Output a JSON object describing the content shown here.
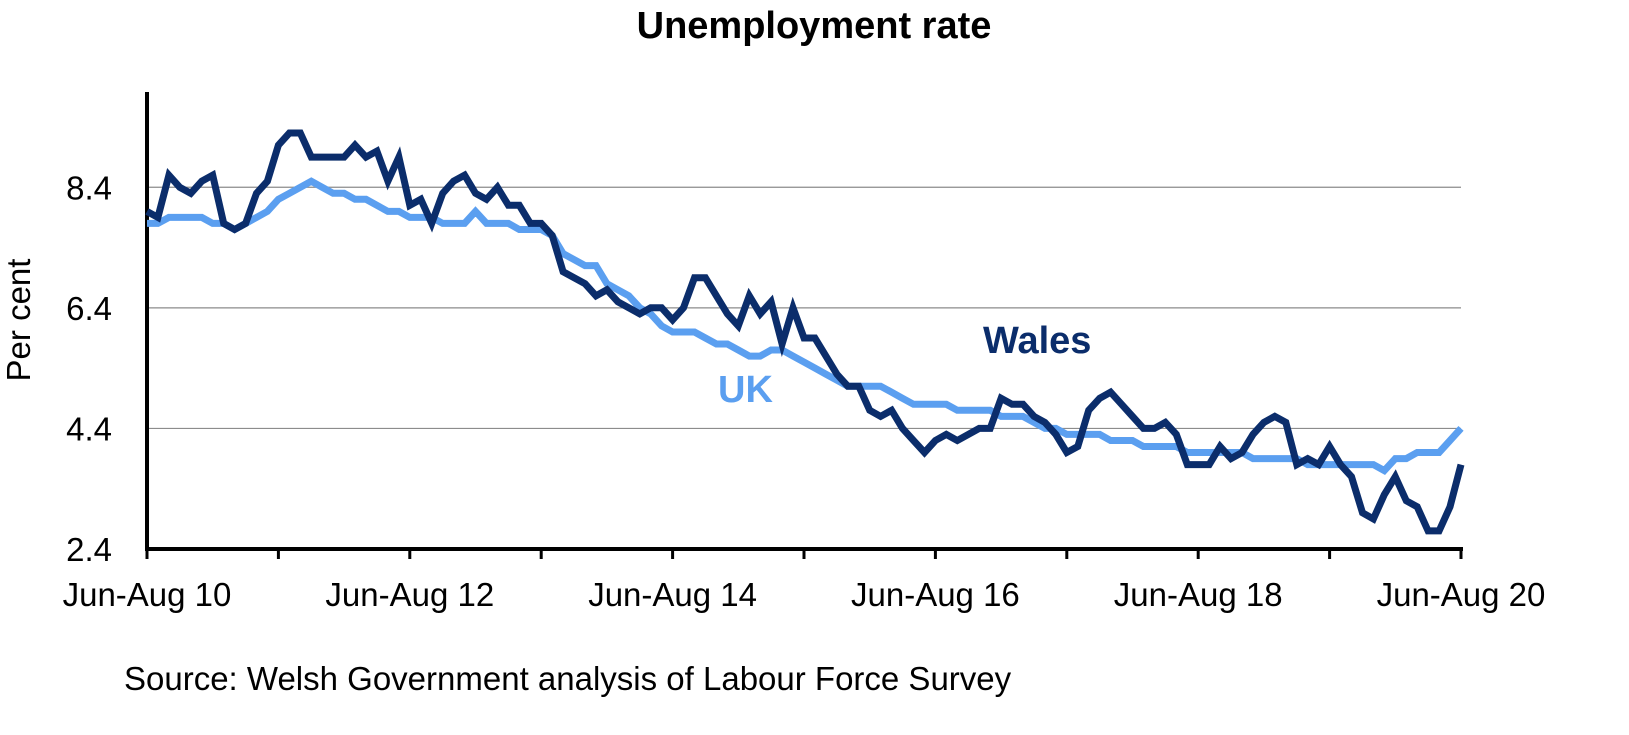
{
  "chart_data": {
    "type": "line",
    "title": "Unemployment rate",
    "xlabel": "",
    "ylabel": "Per cent",
    "source": "Source: Welsh Government analysis of Labour Force Survey",
    "ylim": [
      2.4,
      9.98
    ],
    "yticks": [
      "2.4",
      "4.4",
      "6.4",
      "8.4"
    ],
    "ytick_values": [
      2.4,
      4.4,
      6.4,
      8.4
    ],
    "xtick_labels": [
      "Jun-Aug 10",
      "Jun-Aug 12",
      "Jun-Aug 14",
      "Jun-Aug 16",
      "Jun-Aug 18",
      "Jun-Aug 20"
    ],
    "xtick_label_index": [
      0,
      24,
      48,
      72,
      96,
      120
    ],
    "xtick_mark_index": [
      0,
      12,
      24,
      36,
      48,
      60,
      72,
      84,
      96,
      108,
      120
    ],
    "x_range": [
      0,
      120
    ],
    "grid": "horizontal",
    "colors": {
      "Wales": "#0b2d6b",
      "UK": "#5b9ff0"
    },
    "series": [
      {
        "name": "Wales",
        "label": "Wales",
        "x": [
          0,
          1,
          2,
          3,
          4,
          5,
          6,
          7,
          8,
          9,
          10,
          11,
          12,
          13,
          14,
          15,
          16,
          17,
          18,
          19,
          20,
          21,
          22,
          23,
          24,
          25,
          26,
          27,
          28,
          29,
          30,
          31,
          32,
          33,
          34,
          35,
          36,
          37,
          38,
          39,
          40,
          41,
          42,
          43,
          44,
          45,
          46,
          47,
          48,
          49,
          50,
          51,
          52,
          53,
          54,
          55,
          56,
          57,
          58,
          59,
          60,
          61,
          62,
          63,
          64,
          65,
          66,
          67,
          68,
          69,
          70,
          71,
          72,
          73,
          74,
          75,
          76,
          77,
          78,
          79,
          80,
          81,
          82,
          83,
          84,
          85,
          86,
          87,
          88,
          89,
          90,
          91,
          92,
          93,
          94,
          95,
          96,
          97,
          98,
          99,
          100,
          101,
          102,
          103,
          104,
          105,
          106,
          107,
          108,
          109,
          110,
          111,
          112,
          113,
          114,
          115,
          116,
          117,
          118,
          119,
          120
        ],
        "values": [
          8.0,
          7.9,
          8.6,
          8.4,
          8.3,
          8.5,
          8.6,
          7.8,
          7.7,
          7.8,
          8.3,
          8.5,
          9.1,
          9.3,
          9.3,
          8.9,
          8.9,
          8.9,
          8.9,
          9.1,
          8.9,
          9.0,
          8.5,
          8.9,
          8.1,
          8.2,
          7.8,
          8.3,
          8.5,
          8.6,
          8.3,
          8.2,
          8.4,
          8.1,
          8.1,
          7.8,
          7.8,
          7.6,
          7.0,
          6.9,
          6.8,
          6.6,
          6.7,
          6.5,
          6.4,
          6.3,
          6.4,
          6.4,
          6.2,
          6.4,
          6.9,
          6.9,
          6.6,
          6.3,
          6.1,
          6.6,
          6.3,
          6.5,
          5.8,
          6.4,
          5.9,
          5.9,
          5.6,
          5.3,
          5.1,
          5.1,
          4.7,
          4.6,
          4.7,
          4.4,
          4.2,
          4.0,
          4.2,
          4.3,
          4.2,
          4.3,
          4.4,
          4.4,
          4.9,
          4.8,
          4.8,
          4.6,
          4.5,
          4.3,
          4.0,
          4.1,
          4.7,
          4.9,
          5.0,
          4.8,
          4.6,
          4.4,
          4.4,
          4.5,
          4.3,
          3.8,
          3.8,
          3.8,
          4.1,
          3.9,
          4.0,
          4.3,
          4.5,
          4.6,
          4.5,
          3.8,
          3.9,
          3.8,
          4.1,
          3.8,
          3.6,
          3.0,
          2.9,
          3.3,
          3.6,
          3.2,
          3.1,
          2.7,
          2.7,
          3.1,
          3.8
        ]
      },
      {
        "name": "UK",
        "label": "UK",
        "x": [
          0,
          1,
          2,
          3,
          4,
          5,
          6,
          7,
          8,
          9,
          10,
          11,
          12,
          13,
          14,
          15,
          16,
          17,
          18,
          19,
          20,
          21,
          22,
          23,
          24,
          25,
          26,
          27,
          28,
          29,
          30,
          31,
          32,
          33,
          34,
          35,
          36,
          37,
          38,
          39,
          40,
          41,
          42,
          43,
          44,
          45,
          46,
          47,
          48,
          49,
          50,
          51,
          52,
          53,
          54,
          55,
          56,
          57,
          58,
          59,
          60,
          61,
          62,
          63,
          64,
          65,
          66,
          67,
          68,
          69,
          70,
          71,
          72,
          73,
          74,
          75,
          76,
          77,
          78,
          79,
          80,
          81,
          82,
          83,
          84,
          85,
          86,
          87,
          88,
          89,
          90,
          91,
          92,
          93,
          94,
          95,
          96,
          97,
          98,
          99,
          100,
          101,
          102,
          103,
          104,
          105,
          106,
          107,
          108,
          109,
          110,
          111,
          112,
          113,
          114,
          115,
          116,
          117,
          118,
          119,
          120
        ],
        "values": [
          7.8,
          7.8,
          7.9,
          7.9,
          7.9,
          7.9,
          7.8,
          7.8,
          7.7,
          7.8,
          7.9,
          8.0,
          8.2,
          8.3,
          8.4,
          8.5,
          8.4,
          8.3,
          8.3,
          8.2,
          8.2,
          8.1,
          8.0,
          8.0,
          7.9,
          7.9,
          7.9,
          7.8,
          7.8,
          7.8,
          8.0,
          7.8,
          7.8,
          7.8,
          7.7,
          7.7,
          7.7,
          7.6,
          7.3,
          7.2,
          7.1,
          7.1,
          6.8,
          6.7,
          6.6,
          6.4,
          6.3,
          6.1,
          6.0,
          6.0,
          6.0,
          5.9,
          5.8,
          5.8,
          5.7,
          5.6,
          5.6,
          5.7,
          5.7,
          5.6,
          5.5,
          5.4,
          5.3,
          5.2,
          5.1,
          5.1,
          5.1,
          5.1,
          5.0,
          4.9,
          4.8,
          4.8,
          4.8,
          4.8,
          4.7,
          4.7,
          4.7,
          4.7,
          4.6,
          4.6,
          4.6,
          4.5,
          4.4,
          4.4,
          4.3,
          4.3,
          4.3,
          4.3,
          4.2,
          4.2,
          4.2,
          4.1,
          4.1,
          4.1,
          4.1,
          4.0,
          4.0,
          4.0,
          4.0,
          4.0,
          4.0,
          3.9,
          3.9,
          3.9,
          3.9,
          3.9,
          3.8,
          3.8,
          3.8,
          3.8,
          3.8,
          3.8,
          3.8,
          3.7,
          3.9,
          3.9,
          4.0,
          4.0,
          4.0,
          4.2,
          4.4
        ]
      }
    ]
  }
}
